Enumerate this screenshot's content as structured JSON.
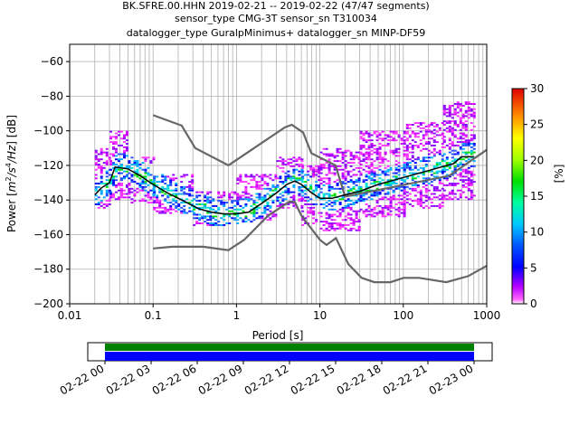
{
  "chart_data": [
    {
      "type": "heatmap",
      "title_lines": [
        "BK.SFRE.00.HHN   2019-02-21 -- 2019-02-22  (47/47 segments)",
        "sensor_type CMG-3T sensor_sn T310034",
        "datalogger_type GuralpMinimus+ datalogger_sn MINP-DF59"
      ],
      "xlabel": "Period [s]",
      "ylabel_parts": [
        "Power [",
        "m",
        "2",
        "/",
        "s",
        "4",
        "/Hz",
        "] [dB]"
      ],
      "x_scale": "log",
      "xlim": [
        0.01,
        1000
      ],
      "ylim": [
        -200,
        -50
      ],
      "x_ticks": [
        {
          "value": 0.01,
          "label": "0.01"
        },
        {
          "value": 0.1,
          "label": "0.1"
        },
        {
          "value": 1,
          "label": "1"
        },
        {
          "value": 10,
          "label": "10"
        },
        {
          "value": 100,
          "label": "100"
        },
        {
          "value": 1000,
          "label": "1000"
        }
      ],
      "y_ticks": [
        {
          "value": -60,
          "label": "−60"
        },
        {
          "value": -80,
          "label": "−80"
        },
        {
          "value": -100,
          "label": "−100"
        },
        {
          "value": -120,
          "label": "−120"
        },
        {
          "value": -140,
          "label": "−140"
        },
        {
          "value": -160,
          "label": "−160"
        },
        {
          "value": -180,
          "label": "−180"
        },
        {
          "value": -200,
          "label": "−200"
        }
      ],
      "grid": true,
      "colorbar": {
        "label": "[%]",
        "range": [
          0,
          30
        ],
        "ticks": [
          {
            "value": 0,
            "label": "0"
          },
          {
            "value": 5,
            "label": "5"
          },
          {
            "value": 10,
            "label": "10"
          },
          {
            "value": 15,
            "label": "15"
          },
          {
            "value": 20,
            "label": "20"
          },
          {
            "value": 25,
            "label": "25"
          },
          {
            "value": 30,
            "label": "30"
          }
        ]
      },
      "series": [
        {
          "kind": "noise-model-high",
          "color": "#666666",
          "points": [
            [
              0.1,
              -91
            ],
            [
              0.22,
              -97
            ],
            [
              0.32,
              -110
            ],
            [
              0.8,
              -120
            ],
            [
              3.8,
              -98
            ],
            [
              4.6,
              -96.5
            ],
            [
              6.3,
              -101
            ],
            [
              7.9,
              -113
            ],
            [
              15.4,
              -120
            ],
            [
              20,
              -138
            ],
            [
              354.8,
              -126
            ],
            [
              1000,
              -111
            ]
          ]
        },
        {
          "kind": "noise-model-low",
          "color": "#666666",
          "points": [
            [
              0.1,
              -168
            ],
            [
              0.17,
              -167
            ],
            [
              0.4,
              -167
            ],
            [
              0.8,
              -169
            ],
            [
              1.24,
              -163
            ],
            [
              2.4,
              -149
            ],
            [
              4.3,
              -141
            ],
            [
              5.0,
              -141
            ],
            [
              6.0,
              -149
            ],
            [
              10,
              -163
            ],
            [
              12,
              -166
            ],
            [
              15.6,
              -162
            ],
            [
              21.9,
              -177
            ],
            [
              31.6,
              -185
            ],
            [
              45,
              -187.5
            ],
            [
              70,
              -187.5
            ],
            [
              101,
              -185
            ],
            [
              154,
              -185
            ],
            [
              328,
              -187.5
            ],
            [
              600,
              -184
            ],
            [
              1000,
              -178
            ]
          ]
        },
        {
          "kind": "median",
          "color": "#000000",
          "points": [
            [
              0.02,
              -137
            ],
            [
              0.024,
              -133
            ],
            [
              0.03,
              -130
            ],
            [
              0.035,
              -121
            ],
            [
              0.05,
              -122
            ],
            [
              0.07,
              -126
            ],
            [
              0.1,
              -131
            ],
            [
              0.15,
              -136
            ],
            [
              0.22,
              -140
            ],
            [
              0.35,
              -145
            ],
            [
              0.5,
              -147
            ],
            [
              0.7,
              -148
            ],
            [
              1,
              -148
            ],
            [
              1.4,
              -147
            ],
            [
              2,
              -142
            ],
            [
              3,
              -136
            ],
            [
              4,
              -131
            ],
            [
              5,
              -129
            ],
            [
              6,
              -131
            ],
            [
              8,
              -136
            ],
            [
              10,
              -139
            ],
            [
              14,
              -139
            ],
            [
              20,
              -137
            ],
            [
              30,
              -135
            ],
            [
              50,
              -131
            ],
            [
              100,
              -127
            ],
            [
              200,
              -123
            ],
            [
              400,
              -119
            ],
            [
              500,
              -115
            ],
            [
              700,
              -115
            ]
          ]
        }
      ],
      "density_bands": [
        {
          "x": [
            0.02,
            0.03
          ],
          "y": [
            -145,
            -110
          ]
        },
        {
          "x": [
            0.03,
            0.05
          ],
          "y": [
            -140,
            -100
          ]
        },
        {
          "x": [
            0.05,
            0.1
          ],
          "y": [
            -142,
            -115
          ]
        },
        {
          "x": [
            0.1,
            0.3
          ],
          "y": [
            -148,
            -125
          ]
        },
        {
          "x": [
            0.3,
            1
          ],
          "y": [
            -155,
            -135
          ]
        },
        {
          "x": [
            1,
            3
          ],
          "y": [
            -153,
            -125
          ]
        },
        {
          "x": [
            3,
            6
          ],
          "y": [
            -145,
            -115
          ]
        },
        {
          "x": [
            6,
            10
          ],
          "y": [
            -155,
            -120
          ]
        },
        {
          "x": [
            10,
            30
          ],
          "y": [
            -158,
            -110
          ]
        },
        {
          "x": [
            30,
            100
          ],
          "y": [
            -150,
            -100
          ]
        },
        {
          "x": [
            100,
            300
          ],
          "y": [
            -145,
            -95
          ]
        },
        {
          "x": [
            300,
            700
          ],
          "y": [
            -140,
            -83
          ]
        }
      ]
    },
    {
      "type": "timeline",
      "x_ticks": [
        "02-22 00",
        "02-22 03",
        "02-22 06",
        "02-22 09",
        "02-22 12",
        "02-22 15",
        "02-22 18",
        "02-22 21",
        "02-23 00"
      ],
      "bars": [
        {
          "color": "#008000",
          "from": 0,
          "to": 24
        },
        {
          "color": "#0000ff",
          "from": 0,
          "to": 24
        }
      ]
    }
  ]
}
